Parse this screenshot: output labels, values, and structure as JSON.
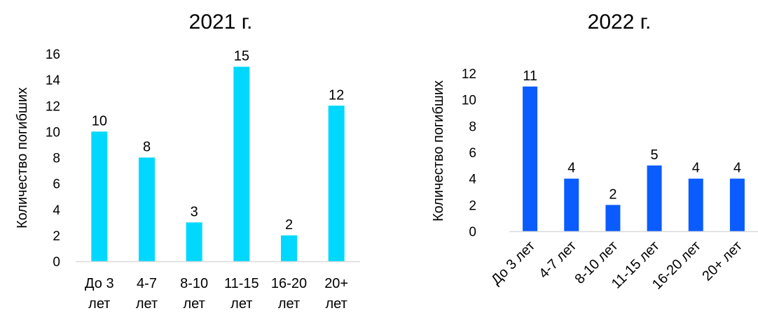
{
  "chart_data": [
    {
      "type": "bar",
      "title": "2021 г.",
      "ylabel": "Количество погибших",
      "xlabel": "",
      "ylim": [
        0,
        16
      ],
      "yticks": [
        0,
        2,
        4,
        6,
        8,
        10,
        12,
        14,
        16
      ],
      "categories": [
        [
          "До 3",
          "лет"
        ],
        [
          "4-7",
          "лет"
        ],
        [
          "8-10",
          "лет"
        ],
        [
          "11-15",
          "лет"
        ],
        [
          "16-20",
          "лет"
        ],
        [
          "20+",
          "лет"
        ]
      ],
      "values": [
        10,
        8,
        3,
        15,
        2,
        12
      ],
      "color": "#00d8ff",
      "category_label_style": "horizontal-two-line",
      "grid": false
    },
    {
      "type": "bar",
      "title": "2022 г.",
      "ylabel": "Количество погибших",
      "xlabel": "",
      "ylim": [
        0,
        12
      ],
      "yticks": [
        0,
        2,
        4,
        6,
        8,
        10,
        12
      ],
      "categories": [
        "До 3 лет",
        "4-7 лет",
        "8-10 лет",
        "11-15 лет",
        "16-20 лет",
        "20+ лет"
      ],
      "values": [
        11,
        4,
        2,
        5,
        4,
        4
      ],
      "color": "#0a5cff",
      "category_label_style": "rotated",
      "grid": false
    }
  ]
}
